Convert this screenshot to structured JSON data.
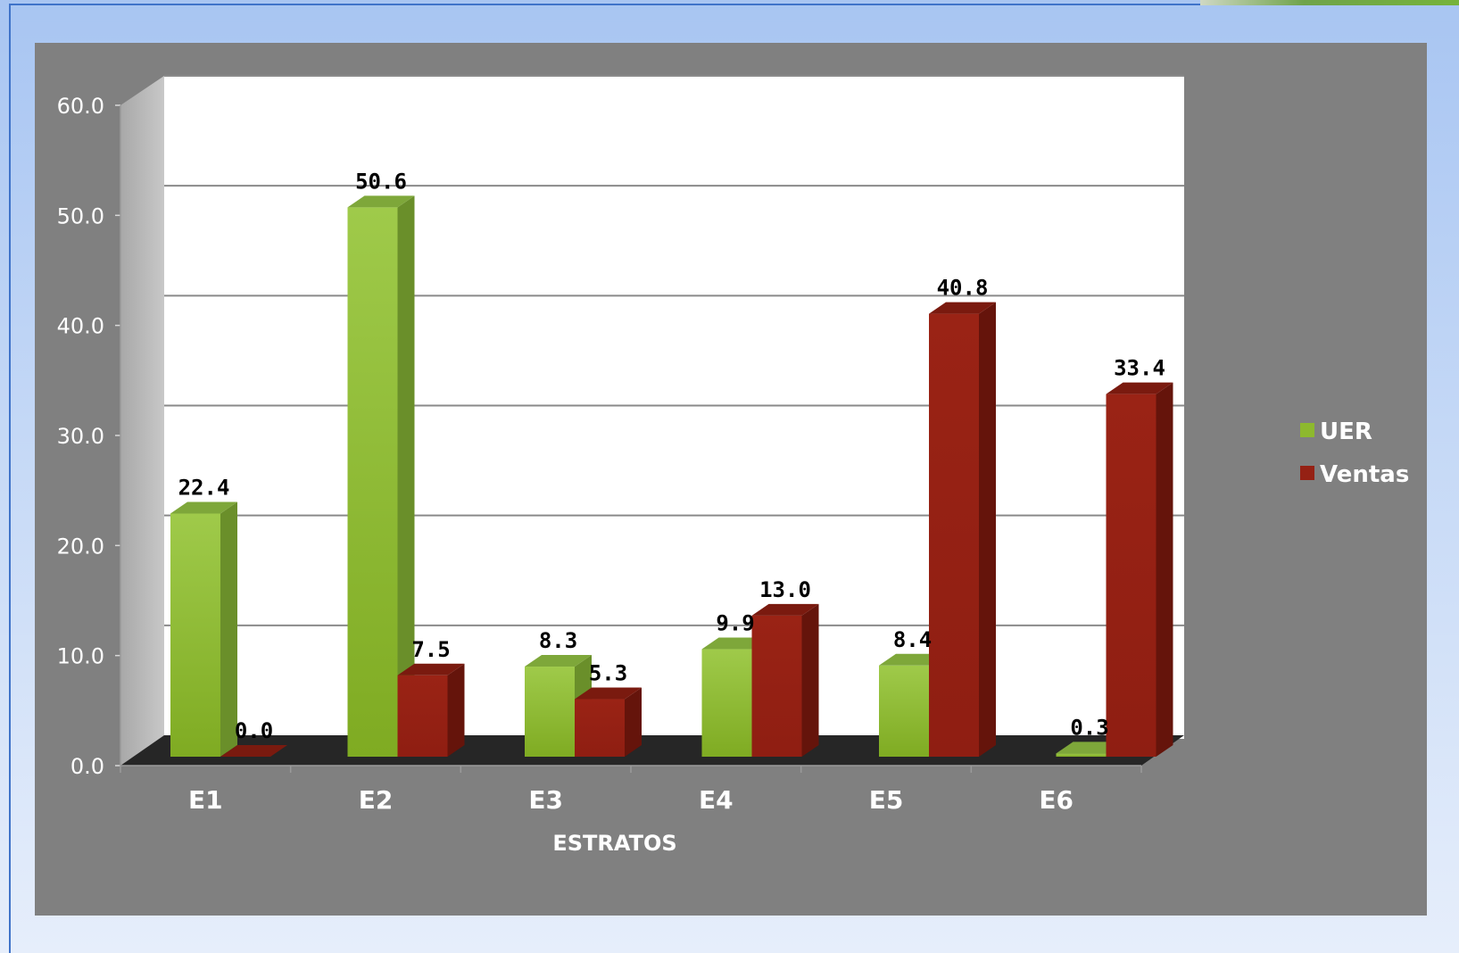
{
  "chart_data": {
    "type": "bar",
    "categories": [
      "E1",
      "E2",
      "E3",
      "E4",
      "E5",
      "E6"
    ],
    "series": [
      {
        "name": "UER",
        "values": [
          22.4,
          50.6,
          8.3,
          9.9,
          8.4,
          0.3
        ],
        "color": "#8db92e"
      },
      {
        "name": "Ventas",
        "values": [
          0.0,
          7.5,
          5.3,
          13.0,
          40.8,
          33.4
        ],
        "color": "#952114"
      }
    ],
    "data_labels": {
      "UER": [
        "22.4",
        "50.6",
        "8.3",
        "9.9",
        "8.4",
        "0.3"
      ],
      "Ventas": [
        "0.0",
        "7.5",
        "5.3",
        "13.0",
        "40.8",
        "33.4"
      ]
    },
    "xlabel": "ESTRATOS",
    "ylabel": "",
    "ylim": [
      0,
      60
    ],
    "yticks": [
      "0.0",
      "10.0",
      "20.0",
      "30.0",
      "40.0",
      "50.0",
      "60.0"
    ],
    "grid": true,
    "legend": "right",
    "style": "3d-clustered-column"
  }
}
